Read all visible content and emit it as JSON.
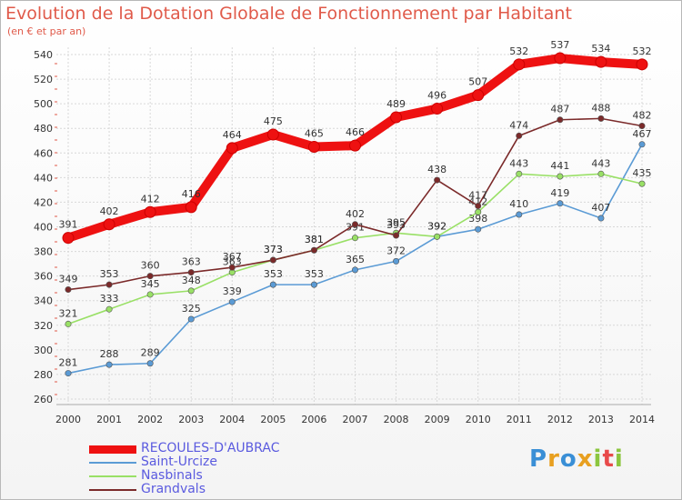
{
  "header": {
    "title": "Evolution de la Dotation Globale de Fonctionnement par Habitant",
    "subtitle": "(en € et par an)"
  },
  "logo": {
    "text": "Proxiti",
    "letters": [
      "P",
      "r",
      "o",
      "x",
      "i",
      "t",
      "i"
    ],
    "colors": [
      "#3a8fd6",
      "#e8a020",
      "#3a8fd6",
      "#e8a020",
      "#8cc63f",
      "#e84a4a",
      "#8cc63f"
    ]
  },
  "chart_data": {
    "type": "line",
    "title": "Evolution de la Dotation Globale de Fonctionnement par Habitant",
    "subtitle": "(en € et par an)",
    "xlabel": "",
    "ylabel": "",
    "x": [
      2000,
      2001,
      2002,
      2003,
      2004,
      2005,
      2006,
      2007,
      2008,
      2009,
      2010,
      2011,
      2012,
      2013,
      2014
    ],
    "ylim": [
      260,
      540
    ],
    "yticks": [
      260,
      280,
      300,
      320,
      340,
      360,
      380,
      400,
      420,
      440,
      460,
      480,
      500,
      520,
      540
    ],
    "grid": true,
    "legend_position": "bottom-left",
    "series": [
      {
        "name": "Saint-Urcize",
        "color": "#5b9bd5",
        "values": [
          281,
          288,
          289,
          325,
          339,
          353,
          353,
          365,
          372,
          392,
          398,
          410,
          419,
          407,
          467
        ]
      },
      {
        "name": "Nasbinals",
        "color": "#99e066",
        "values": [
          321,
          333,
          345,
          348,
          363,
          373,
          381,
          391,
          395,
          392,
          412,
          443,
          441,
          443,
          435
        ]
      },
      {
        "name": "Grandvals",
        "color": "#7b2a2a",
        "values": [
          349,
          353,
          360,
          363,
          367,
          373,
          381,
          402,
          393,
          438,
          417,
          474,
          487,
          488,
          482
        ]
      },
      {
        "name": "RECOULES-D'AUBRAC",
        "color": "#ee1111",
        "values": [
          391,
          402,
          412,
          416,
          464,
          475,
          465,
          466,
          489,
          496,
          507,
          532,
          537,
          534,
          532
        ]
      }
    ]
  },
  "legend": [
    {
      "label": "RECOULES-D'AUBRAC",
      "color": "#ee1111"
    },
    {
      "label": "Saint-Urcize",
      "color": "#5b9bd5"
    },
    {
      "label": "Nasbinals",
      "color": "#99e066"
    },
    {
      "label": "Grandvals",
      "color": "#7b2a2a"
    }
  ]
}
